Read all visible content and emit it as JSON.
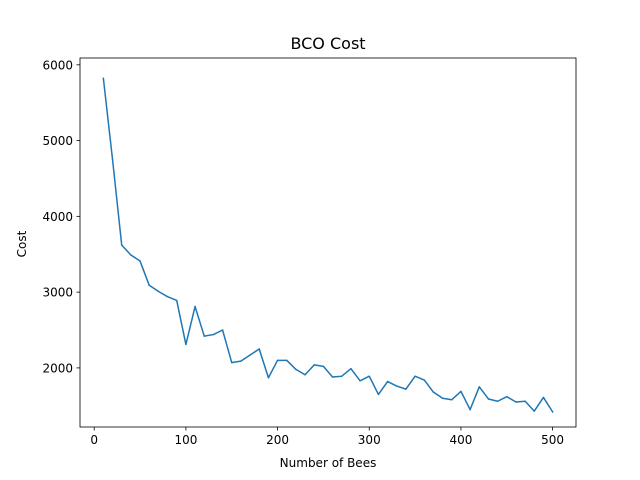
{
  "chart_data": {
    "type": "line",
    "title": "BCO Cost",
    "xlabel": "Number of Bees",
    "ylabel": "Cost",
    "xlim": [
      -15.5,
      525.5
    ],
    "ylim": [
      1220,
      6090
    ],
    "xticks": [
      0,
      100,
      200,
      300,
      400,
      500
    ],
    "yticks": [
      2000,
      3000,
      4000,
      5000,
      6000
    ],
    "grid": false,
    "color": "#1f77b4",
    "series": [
      {
        "x": [
          10,
          20,
          30,
          40,
          50,
          60,
          70,
          80,
          90,
          100,
          110,
          120,
          130,
          140,
          150,
          160,
          170,
          180,
          190,
          200,
          210,
          220,
          230,
          240,
          250,
          260,
          270,
          280,
          290,
          300,
          310,
          320,
          330,
          340,
          350,
          360,
          370,
          380,
          390,
          400,
          410,
          420,
          430,
          440,
          450,
          460,
          470,
          480,
          490,
          500
        ],
        "y": [
          5820,
          4750,
          3620,
          3490,
          3410,
          3090,
          3010,
          2940,
          2890,
          2310,
          2810,
          2420,
          2440,
          2500,
          2070,
          2090,
          2170,
          2250,
          1870,
          2100,
          2100,
          1980,
          1910,
          2040,
          2020,
          1880,
          1890,
          1990,
          1830,
          1890,
          1650,
          1820,
          1760,
          1720,
          1890,
          1840,
          1680,
          1600,
          1580,
          1690,
          1450,
          1750,
          1590,
          1560,
          1620,
          1550,
          1560,
          1430,
          1610,
          1420
        ]
      }
    ]
  }
}
